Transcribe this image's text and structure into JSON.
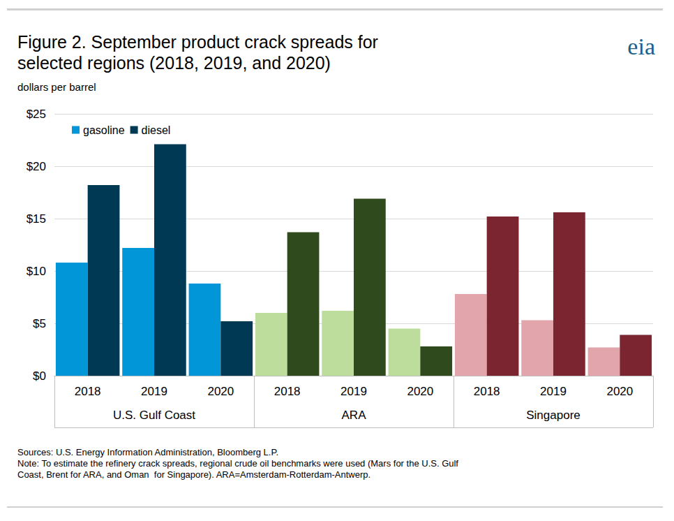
{
  "chart_data": {
    "type": "bar",
    "title": "Figure 2. September product crack spreads for\nselected regions (2018, 2019, and 2020)",
    "subtitle": "dollars per barrel",
    "logo": "eia",
    "notes": [
      "Sources: U.S. Energy Information Administration, Bloomberg L.P.",
      "Note: To estimate the refinery crack spreads, regional crude oil benchmarks were used (Mars for the U.S. Gulf",
      "Coast, Brent for ARA, and Oman  for Singapore). ARA=Amsterdam-Rotterdam-Antwerp."
    ],
    "categories": [
      "2018",
      "2019",
      "2020",
      "2018",
      "2019",
      "2020",
      "2018",
      "2019",
      "2020"
    ],
    "groups": [
      "U.S. Gulf Coast",
      "ARA",
      "Singapore"
    ],
    "series": [
      {
        "name": "gasoline",
        "color": "#0096d7",
        "colors": [
          "#0096d7",
          "#0096d7",
          "#0096d7",
          "#bddd9d",
          "#bddd9d",
          "#bddd9d",
          "#e2a5ab",
          "#e2a5ab",
          "#e2a5ab"
        ],
        "values": [
          10.8,
          12.2,
          8.8,
          6.0,
          6.2,
          4.5,
          7.8,
          5.3,
          2.7
        ]
      },
      {
        "name": "diesel",
        "color": "#003953",
        "colors": [
          "#003953",
          "#003953",
          "#003953",
          "#2f4a1d",
          "#2f4a1d",
          "#2f4a1d",
          "#7a2530",
          "#7a2530",
          "#7a2530"
        ],
        "values": [
          18.2,
          22.1,
          5.2,
          13.7,
          16.9,
          2.8,
          15.2,
          15.6,
          3.9
        ]
      }
    ],
    "ylim": [
      0,
      25
    ],
    "yticks": [
      {
        "value": 0,
        "label": "$0"
      },
      {
        "value": 5,
        "label": "$5"
      },
      {
        "value": 10,
        "label": "$10"
      },
      {
        "value": 15,
        "label": "$15"
      },
      {
        "value": 20,
        "label": "$20"
      },
      {
        "value": 25,
        "label": "$25"
      }
    ],
    "grid": true,
    "legend": "top-left"
  }
}
